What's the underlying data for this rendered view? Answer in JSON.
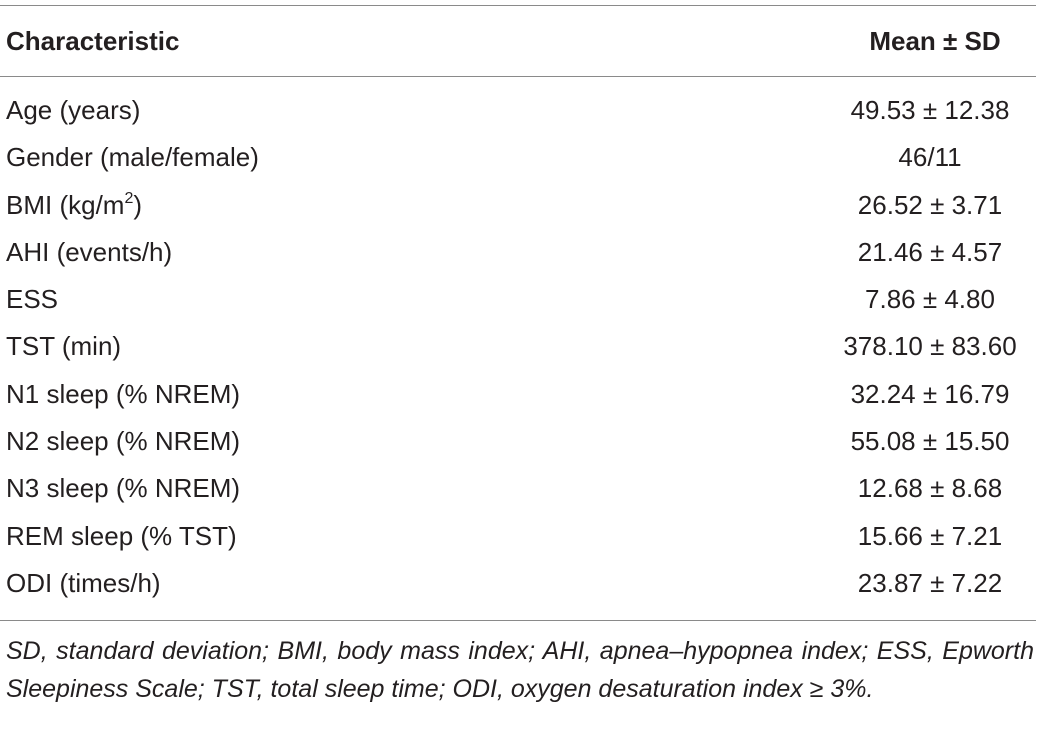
{
  "table": {
    "headers": {
      "characteristic": "Characteristic",
      "value": "Mean ± SD"
    },
    "rows": [
      {
        "label": "Age (years)",
        "value": "49.53 ± 12.38"
      },
      {
        "label": "Gender (male/female)",
        "value": "46/11"
      },
      {
        "label_pre": "BMI (kg/m",
        "label_sup": "2",
        "label_post": ")",
        "value": "26.52 ± 3.71"
      },
      {
        "label": "AHI (events/h)",
        "value": "21.46 ± 4.57"
      },
      {
        "label": "ESS",
        "value": "7.86 ± 4.80"
      },
      {
        "label": "TST (min)",
        "value": "378.10 ± 83.60"
      },
      {
        "label": "N1 sleep (% NREM)",
        "value": "32.24 ± 16.79"
      },
      {
        "label": "N2 sleep (% NREM)",
        "value": "55.08 ± 15.50"
      },
      {
        "label": "N3 sleep (% NREM)",
        "value": "12.68 ± 8.68"
      },
      {
        "label": "REM sleep (% TST)",
        "value": "15.66 ± 7.21"
      },
      {
        "label": "ODI (times/h)",
        "value": "23.87 ± 7.22"
      }
    ],
    "footnote": "SD, standard deviation; BMI, body mass index; AHI, apnea–hypopnea index; ESS, Epworth Sleepiness Scale; TST, total sleep time; ODI, oxygen desaturation index ≥ 3%."
  }
}
